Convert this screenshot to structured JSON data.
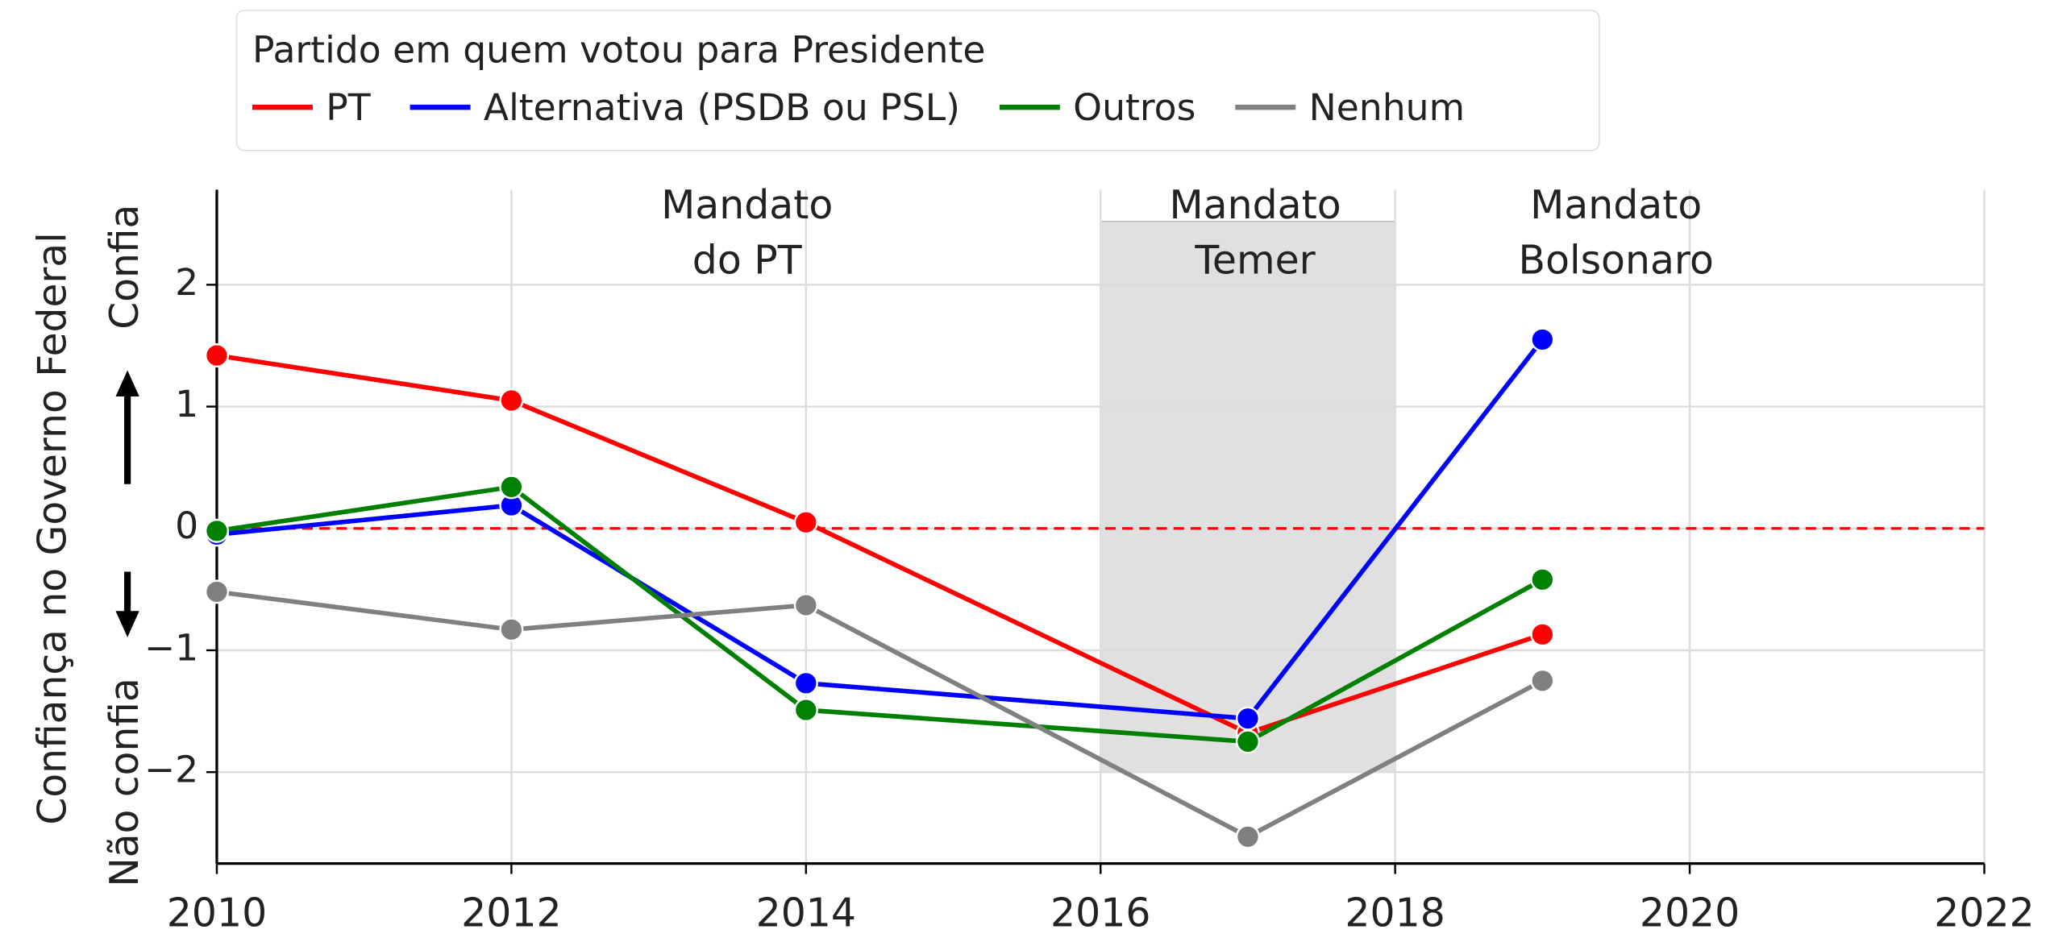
{
  "chart_data": {
    "type": "line",
    "ylabel": "Confiança no Governo Federal",
    "ylabel_top": "Confia",
    "ylabel_bottom": "Não confia",
    "legend_title": "Partido em quem votou para Presidente",
    "legend": "top",
    "grid": true,
    "x": [
      2010,
      2012,
      2014,
      2017,
      2019
    ],
    "series": [
      {
        "name": "PT",
        "color": "#ff0000",
        "values": [
          1.42,
          1.05,
          0.05,
          -1.68,
          -0.87
        ]
      },
      {
        "name": "Alternativa (PSDB ou PSL)",
        "color": "#0000ff",
        "values": [
          -0.05,
          0.19,
          -1.27,
          -1.56,
          1.55
        ]
      },
      {
        "name": "Outros",
        "color": "#008000",
        "values": [
          -0.02,
          0.34,
          -1.49,
          -1.75,
          -0.42
        ]
      },
      {
        "name": "Nenhum",
        "color": "#808080",
        "values": [
          -0.52,
          -0.83,
          -0.63,
          -2.53,
          -1.25
        ]
      }
    ],
    "reference_line": {
      "value": 0,
      "color": "#ff0000"
    },
    "span": {
      "x": [
        2016,
        2018
      ],
      "y": [
        -2,
        2.52
      ],
      "color": "#e0e0e0"
    },
    "annotations": [
      {
        "text": [
          "Mandato",
          "do PT"
        ],
        "x": 2013.6,
        "y": 2.2
      },
      {
        "text": [
          "Mandato",
          "Temer"
        ],
        "x": 2017.05,
        "y": 2.2
      },
      {
        "text": [
          "Mandato",
          "Bolsonaro"
        ],
        "x": 2019.5,
        "y": 2.2
      }
    ],
    "xlim": [
      2010,
      2022
    ],
    "xticks": [
      2010,
      2012,
      2014,
      2016,
      2018,
      2020,
      2022
    ],
    "ylim": [
      -2.75,
      2.78
    ],
    "yticks": [
      {
        "value": -2,
        "label": "−2"
      },
      {
        "value": -1,
        "label": "−1"
      },
      0,
      1,
      2
    ]
  }
}
